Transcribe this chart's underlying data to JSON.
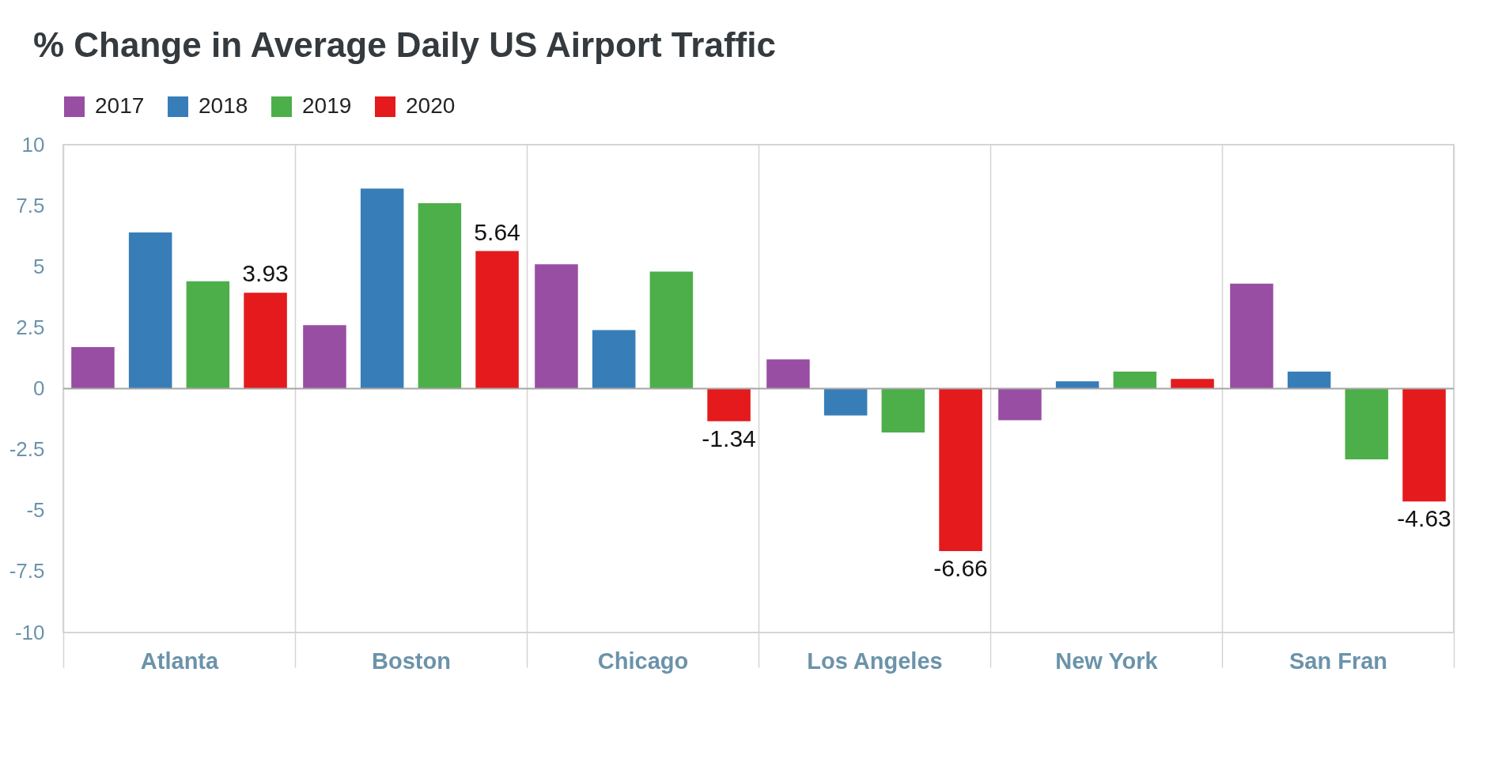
{
  "chart_data": {
    "type": "bar",
    "title": "% Change in Average Daily US Airport Traffic",
    "categories": [
      "Atlanta",
      "Boston",
      "Chicago",
      "Los Angeles",
      "New York",
      "San Fran"
    ],
    "series": [
      {
        "name": "2017",
        "color": "#984ea3",
        "values": [
          1.7,
          2.6,
          5.1,
          1.2,
          -1.3,
          4.3
        ]
      },
      {
        "name": "2018",
        "color": "#377eb8",
        "values": [
          6.4,
          8.2,
          2.4,
          -1.1,
          0.3,
          0.7
        ]
      },
      {
        "name": "2019",
        "color": "#4daf4a",
        "values": [
          4.4,
          7.6,
          4.8,
          -1.8,
          0.7,
          -2.9
        ]
      },
      {
        "name": "2020",
        "color": "#e41a1c",
        "values": [
          3.93,
          5.64,
          -1.34,
          -6.66,
          0.4,
          -4.63
        ],
        "value_labels": [
          "3.93",
          "5.64",
          "-1.34",
          "-6.66",
          null,
          "-4.63"
        ]
      }
    ],
    "ylim": [
      -10,
      10
    ],
    "yticks": [
      -10,
      -7.5,
      -5,
      -2.5,
      0,
      2.5,
      5,
      7.5,
      10
    ],
    "grid": "x",
    "legend": "top left",
    "ref_lines": [
      {
        "axis": "y",
        "value": 0,
        "color": "#a6a6a6"
      }
    ]
  }
}
